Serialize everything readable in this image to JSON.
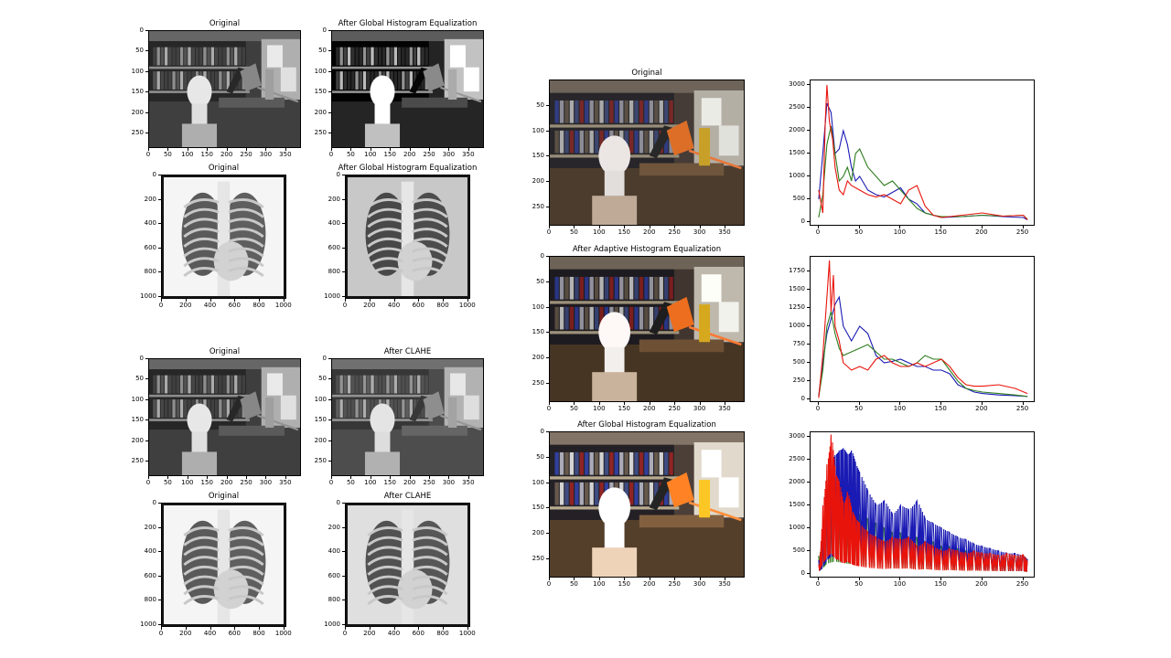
{
  "colors": {
    "red": "#e8140c",
    "green": "#2e7d1e",
    "blue": "#1a1ab4"
  },
  "panels": [
    {
      "id": "p1",
      "title": "Original",
      "kind": "office",
      "gray": true,
      "variant": "orig",
      "x": 162,
      "y": 33,
      "w": 167,
      "h": 129,
      "xticks": [
        0,
        50,
        100,
        150,
        200,
        250,
        300,
        350
      ],
      "xmax": 390,
      "yticks": [
        0,
        50,
        100,
        150,
        200,
        250
      ],
      "ymax": 288
    },
    {
      "id": "p2",
      "title": "After Global Histogram Equalization",
      "kind": "office",
      "gray": true,
      "variant": "ghe",
      "x": 362,
      "y": 33,
      "w": 167,
      "h": 129,
      "xticks": [
        0,
        50,
        100,
        150,
        200,
        250,
        300,
        350
      ],
      "xmax": 390,
      "yticks": [
        0,
        50,
        100,
        150,
        200,
        250
      ],
      "ymax": 288
    },
    {
      "id": "p3",
      "title": "Original",
      "kind": "xray",
      "variant": "orig",
      "x": 176,
      "y": 191,
      "w": 137,
      "h": 136,
      "xticks": [
        0,
        200,
        400,
        600,
        800,
        1000
      ],
      "xmax": 1024,
      "yticks": [
        0,
        200,
        400,
        600,
        800,
        1000
      ],
      "ymax": 1024
    },
    {
      "id": "p4",
      "title": "After Global Histogram Equalization",
      "kind": "xray",
      "variant": "ghe",
      "x": 377,
      "y": 191,
      "w": 137,
      "h": 136,
      "xticks": [
        0,
        200,
        400,
        600,
        800,
        1000
      ],
      "xmax": 1024,
      "yticks": [
        0,
        200,
        400,
        600,
        800,
        1000
      ],
      "ymax": 1024
    },
    {
      "id": "p5",
      "title": "Original",
      "kind": "office",
      "gray": true,
      "variant": "orig",
      "x": 162,
      "y": 392,
      "w": 167,
      "h": 129,
      "xticks": [
        0,
        50,
        100,
        150,
        200,
        250,
        300,
        350
      ],
      "xmax": 390,
      "yticks": [
        0,
        50,
        100,
        150,
        200,
        250
      ],
      "ymax": 288
    },
    {
      "id": "p6",
      "title": "After CLAHE",
      "kind": "office",
      "gray": true,
      "variant": "clahe",
      "x": 362,
      "y": 392,
      "w": 167,
      "h": 129,
      "xticks": [
        0,
        50,
        100,
        150,
        200,
        250,
        300,
        350
      ],
      "xmax": 390,
      "yticks": [
        0,
        50,
        100,
        150,
        200,
        250
      ],
      "ymax": 288
    },
    {
      "id": "p7",
      "title": "Original",
      "kind": "xray",
      "variant": "orig",
      "x": 176,
      "y": 550,
      "w": 137,
      "h": 136,
      "xticks": [
        0,
        200,
        400,
        600,
        800,
        1000
      ],
      "xmax": 1024,
      "yticks": [
        0,
        200,
        400,
        600,
        800,
        1000
      ],
      "ymax": 1024
    },
    {
      "id": "p8",
      "title": "After CLAHE",
      "kind": "xray",
      "variant": "clahe",
      "x": 377,
      "y": 550,
      "w": 137,
      "h": 136,
      "xticks": [
        0,
        200,
        400,
        600,
        800,
        1000
      ],
      "xmax": 1024,
      "yticks": [
        0,
        200,
        400,
        600,
        800,
        1000
      ],
      "ymax": 1024
    },
    {
      "id": "p9",
      "title": "Original",
      "kind": "office",
      "gray": false,
      "variant": "orig",
      "x": 600,
      "y": 87,
      "w": 214,
      "h": 160,
      "xticks": [
        0,
        50,
        100,
        150,
        200,
        250,
        300,
        350
      ],
      "xmax": 390,
      "yticks": [
        50,
        100,
        150,
        200,
        250
      ],
      "ymax": 288
    },
    {
      "id": "p10",
      "title": "After Adaptive Histogram Equalization",
      "kind": "office",
      "gray": false,
      "variant": "ahe",
      "x": 600,
      "y": 280,
      "w": 214,
      "h": 160,
      "xticks": [
        0,
        50,
        100,
        150,
        200,
        250,
        300,
        350
      ],
      "xmax": 390,
      "yticks": [
        0,
        50,
        100,
        150,
        200,
        250
      ],
      "ymax": 288
    },
    {
      "id": "p11",
      "title": "After Global Histogram Equalization",
      "kind": "office",
      "gray": false,
      "variant": "ghe",
      "x": 600,
      "y": 472,
      "w": 214,
      "h": 160,
      "xticks": [
        0,
        50,
        100,
        150,
        200,
        250,
        300,
        350
      ],
      "xmax": 390,
      "yticks": [
        0,
        50,
        100,
        150,
        200,
        250
      ],
      "ymax": 288
    }
  ],
  "chart_data": [
    {
      "type": "line",
      "id": "h1",
      "box": {
        "x": 885,
        "y": 87,
        "w": 246,
        "h": 160
      },
      "xlim": [
        -10,
        265
      ],
      "ylim": [
        -100,
        3100
      ],
      "xticks": [
        0,
        50,
        100,
        150,
        200,
        250
      ],
      "yticks": [
        0,
        500,
        1000,
        1500,
        2000,
        2500,
        3000
      ],
      "series": [
        {
          "color": "blue",
          "x": [
            0,
            5,
            10,
            15,
            20,
            25,
            30,
            35,
            40,
            45,
            50,
            60,
            70,
            80,
            90,
            100,
            110,
            120,
            130,
            140,
            150,
            175,
            200,
            225,
            250,
            255
          ],
          "y": [
            500,
            1500,
            2600,
            2400,
            1500,
            1600,
            2000,
            1700,
            1200,
            900,
            1000,
            700,
            600,
            550,
            650,
            750,
            500,
            400,
            200,
            150,
            100,
            120,
            150,
            120,
            100,
            50
          ]
        },
        {
          "color": "green",
          "x": [
            0,
            5,
            10,
            15,
            20,
            25,
            30,
            35,
            40,
            45,
            50,
            60,
            70,
            80,
            90,
            100,
            110,
            120,
            130,
            140,
            150,
            175,
            200,
            225,
            250,
            255
          ],
          "y": [
            100,
            600,
            1700,
            2100,
            1500,
            900,
            1000,
            1200,
            900,
            1500,
            1600,
            1200,
            1000,
            800,
            900,
            700,
            500,
            300,
            200,
            150,
            120,
            120,
            150,
            130,
            150,
            60
          ]
        },
        {
          "color": "red",
          "x": [
            0,
            5,
            8,
            10,
            13,
            17,
            20,
            25,
            30,
            35,
            40,
            50,
            60,
            70,
            80,
            90,
            100,
            110,
            120,
            130,
            140,
            150,
            175,
            200,
            225,
            250,
            255
          ],
          "y": [
            700,
            200,
            2200,
            3000,
            2200,
            1800,
            1200,
            700,
            600,
            900,
            800,
            700,
            600,
            550,
            600,
            500,
            400,
            700,
            800,
            350,
            150,
            100,
            150,
            200,
            130,
            150,
            50
          ]
        }
      ]
    },
    {
      "type": "line",
      "id": "h2",
      "box": {
        "x": 885,
        "y": 280,
        "w": 246,
        "h": 160
      },
      "xlim": [
        -10,
        265
      ],
      "ylim": [
        -50,
        1950
      ],
      "xticks": [
        0,
        50,
        100,
        150,
        200,
        250
      ],
      "yticks": [
        0,
        250,
        500,
        750,
        1000,
        1250,
        1500,
        1750
      ],
      "series": [
        {
          "color": "blue",
          "x": [
            0,
            5,
            10,
            15,
            20,
            25,
            30,
            40,
            50,
            60,
            70,
            80,
            90,
            100,
            110,
            120,
            130,
            140,
            150,
            160,
            170,
            180,
            190,
            200,
            220,
            240,
            255
          ],
          "y": [
            50,
            500,
            900,
            1100,
            1300,
            1400,
            1000,
            800,
            1000,
            900,
            600,
            500,
            520,
            550,
            500,
            450,
            450,
            400,
            400,
            350,
            200,
            150,
            100,
            80,
            60,
            50,
            40
          ]
        },
        {
          "color": "green",
          "x": [
            0,
            5,
            10,
            15,
            20,
            25,
            30,
            40,
            50,
            60,
            70,
            80,
            90,
            100,
            110,
            120,
            130,
            140,
            150,
            160,
            170,
            180,
            190,
            200,
            220,
            240,
            255
          ],
          "y": [
            30,
            400,
            1000,
            1200,
            900,
            700,
            600,
            650,
            700,
            750,
            650,
            550,
            550,
            500,
            450,
            500,
            600,
            550,
            550,
            400,
            250,
            150,
            120,
            100,
            80,
            60,
            40
          ]
        },
        {
          "color": "red",
          "x": [
            0,
            5,
            10,
            13,
            15,
            18,
            20,
            25,
            30,
            40,
            50,
            60,
            70,
            80,
            90,
            100,
            110,
            120,
            130,
            140,
            150,
            160,
            170,
            180,
            190,
            200,
            220,
            240,
            255
          ],
          "y": [
            20,
            600,
            1400,
            1900,
            1200,
            1700,
            1000,
            800,
            500,
            400,
            450,
            400,
            550,
            600,
            500,
            450,
            450,
            500,
            450,
            500,
            550,
            450,
            300,
            200,
            180,
            180,
            200,
            150,
            80
          ]
        }
      ]
    },
    {
      "type": "line",
      "id": "h3",
      "box": {
        "x": 885,
        "y": 472,
        "w": 246,
        "h": 160
      },
      "xlim": [
        -10,
        265
      ],
      "ylim": [
        -100,
        3100
      ],
      "xticks": [
        0,
        50,
        100,
        150,
        200,
        250
      ],
      "yticks": [
        0,
        500,
        1000,
        1500,
        2000,
        2500,
        3000
      ],
      "series": [
        {
          "color": "green",
          "x": [
            0,
            5,
            10,
            20,
            30,
            40,
            50,
            60,
            70,
            80,
            90,
            100,
            110,
            120,
            130,
            140,
            150,
            160,
            170,
            180,
            190,
            200,
            210,
            220,
            230,
            240,
            250,
            255
          ],
          "y": [
            400,
            800,
            1500,
            1800,
            1600,
            1400,
            1300,
            1200,
            1100,
            1000,
            900,
            900,
            800,
            800,
            700,
            700,
            600,
            600,
            550,
            500,
            500,
            450,
            450,
            400,
            400,
            400,
            400,
            300
          ]
        },
        {
          "color": "blue",
          "x": [
            0,
            5,
            10,
            15,
            20,
            25,
            30,
            35,
            40,
            45,
            50,
            60,
            70,
            80,
            90,
            100,
            110,
            120,
            130,
            140,
            150,
            160,
            170,
            180,
            190,
            200,
            210,
            220,
            230,
            240,
            250,
            255
          ],
          "y": [
            300,
            900,
            2000,
            2500,
            2600,
            2700,
            2750,
            2600,
            2700,
            2400,
            2200,
            1800,
            1500,
            1600,
            1300,
            1500,
            1400,
            1600,
            1200,
            1100,
            1000,
            900,
            800,
            750,
            650,
            600,
            550,
            500,
            450,
            450,
            400,
            300
          ]
        },
        {
          "color": "red",
          "x": [
            0,
            5,
            10,
            15,
            20,
            25,
            30,
            35,
            40,
            45,
            50,
            60,
            70,
            80,
            90,
            100,
            110,
            120,
            130,
            140,
            150,
            160,
            170,
            180,
            190,
            200,
            210,
            220,
            230,
            240,
            250,
            255
          ],
          "y": [
            200,
            1500,
            2400,
            3050,
            2200,
            2000,
            1500,
            1800,
            1400,
            1200,
            1100,
            900,
            800,
            700,
            800,
            750,
            800,
            600,
            700,
            600,
            500,
            550,
            500,
            450,
            500,
            450,
            450,
            400,
            450,
            400,
            420,
            250
          ]
        }
      ]
    }
  ]
}
